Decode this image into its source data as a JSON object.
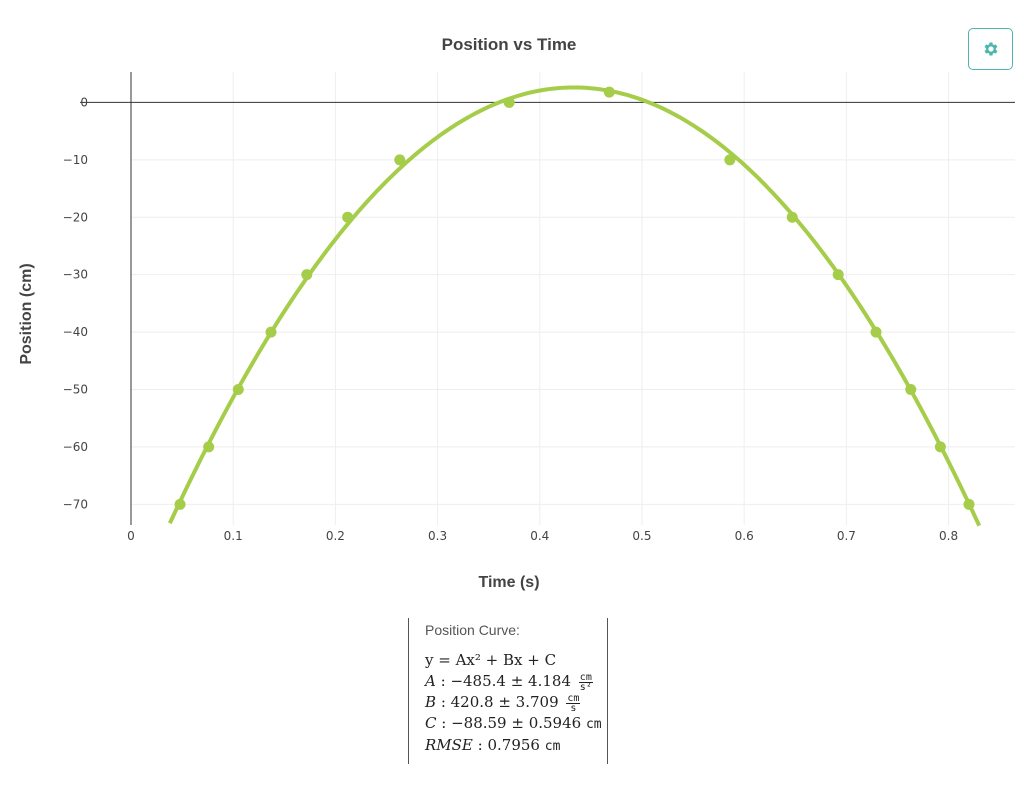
{
  "chart_data": {
    "type": "scatter",
    "title": "Position vs Time",
    "xlabel": "Time (s)",
    "ylabel": "Position (cm)",
    "xlim": [
      0,
      0.865
    ],
    "ylim": [
      -73.6,
      5.3
    ],
    "xticks": [
      0,
      0.1,
      0.2,
      0.3,
      0.4,
      0.5,
      0.6,
      0.7,
      0.8
    ],
    "xtick_labels": [
      "0",
      "0.1",
      "0.2",
      "0.3",
      "0.4",
      "0.5",
      "0.6",
      "0.7",
      "0.8"
    ],
    "yticks": [
      0,
      -10,
      -20,
      -30,
      -40,
      -50,
      -60,
      -70
    ],
    "ytick_labels": [
      "0",
      "−10",
      "−20",
      "−30",
      "−40",
      "−50",
      "−60",
      "−70"
    ],
    "grid": true,
    "colors": {
      "series": "#a5cd4a",
      "axis": "#333333",
      "grid": "#eeeeee"
    },
    "series": [
      {
        "values": [
          {
            "x": 0.048,
            "y": -70
          },
          {
            "x": 0.076,
            "y": -60
          },
          {
            "x": 0.105,
            "y": -50
          },
          {
            "x": 0.137,
            "y": -40
          },
          {
            "x": 0.172,
            "y": -30
          },
          {
            "x": 0.212,
            "y": -20
          },
          {
            "x": 0.263,
            "y": -10
          },
          {
            "x": 0.37,
            "y": 0
          },
          {
            "x": 0.468,
            "y": 1.8
          },
          {
            "x": 0.586,
            "y": -10
          },
          {
            "x": 0.647,
            "y": -20
          },
          {
            "x": 0.692,
            "y": -30
          },
          {
            "x": 0.729,
            "y": -40
          },
          {
            "x": 0.763,
            "y": -50
          },
          {
            "x": 0.792,
            "y": -60
          },
          {
            "x": 0.82,
            "y": -70
          }
        ]
      }
    ],
    "fit": {
      "A": -485.4,
      "B": 420.8,
      "C": -88.59,
      "x_range": [
        0.038,
        0.83
      ]
    }
  },
  "settings": {
    "icon": "gear-icon",
    "color": "#4db6ac"
  },
  "fit_panel": {
    "heading": "Position Curve:",
    "equation": "y = Ax² + Bx + C",
    "a_label": "A",
    "a_value": ": −485.4 ± 4.184",
    "a_unit_num": "cm",
    "a_unit_den": "s²",
    "b_label": "B",
    "b_value": ": 420.8 ± 3.709",
    "b_unit_num": "cm",
    "b_unit_den": "s",
    "c_label": "C",
    "c_value": ": −88.59 ± 0.5946",
    "c_unit": "cm",
    "rmse_label": "RMSE",
    "rmse_value": ": 0.7956",
    "rmse_unit": "cm"
  }
}
